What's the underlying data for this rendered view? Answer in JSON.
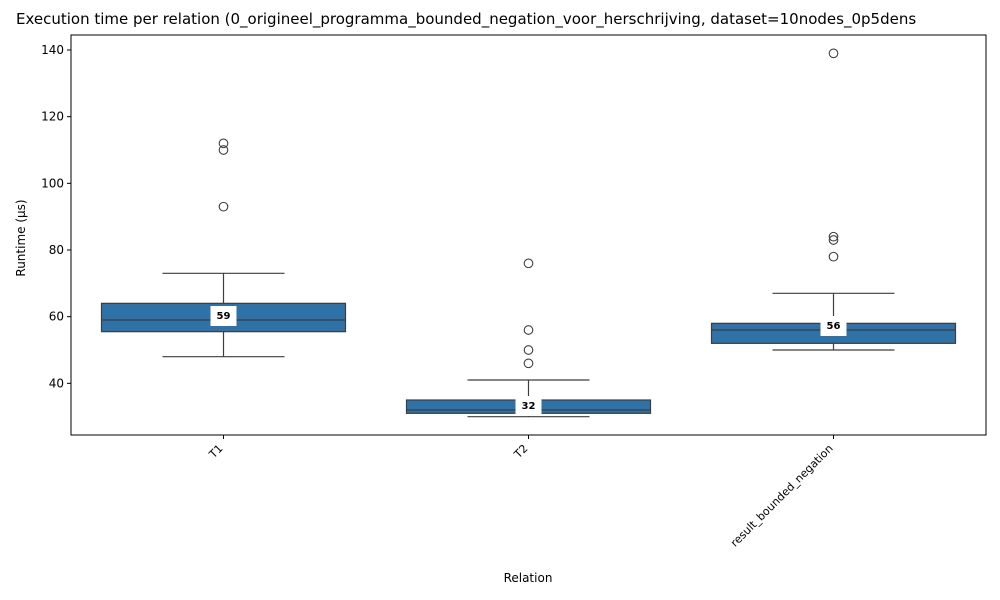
{
  "chart_data": {
    "type": "box",
    "title": "Execution time per relation (0_origineel_programma_bounded_negation_voor_herschrijving, dataset=10nodes_0p5dens",
    "xlabel": "Relation",
    "ylabel": "Runtime (µs)",
    "ylim": [
      24.5,
      144.5
    ],
    "yticks": [
      40,
      60,
      80,
      100,
      120,
      140
    ],
    "grid": false,
    "box_color": "#2f72a8",
    "categories": [
      "T1",
      "T2",
      "result_bounded_negation"
    ],
    "boxes": [
      {
        "category": "T1",
        "whisker_low": 48,
        "q1": 55.5,
        "median": 59,
        "q3": 64,
        "whisker_high": 73,
        "outliers": [
          93,
          110,
          112
        ],
        "median_label": "59"
      },
      {
        "category": "T2",
        "whisker_low": 30,
        "q1": 31,
        "median": 32,
        "q3": 35,
        "whisker_high": 41,
        "outliers": [
          46,
          50,
          56,
          76
        ],
        "median_label": "32"
      },
      {
        "category": "result_bounded_negation",
        "whisker_low": 50,
        "q1": 52,
        "median": 56,
        "q3": 58,
        "whisker_high": 67,
        "outliers": [
          78,
          83,
          84,
          139
        ],
        "median_label": "56"
      }
    ]
  }
}
